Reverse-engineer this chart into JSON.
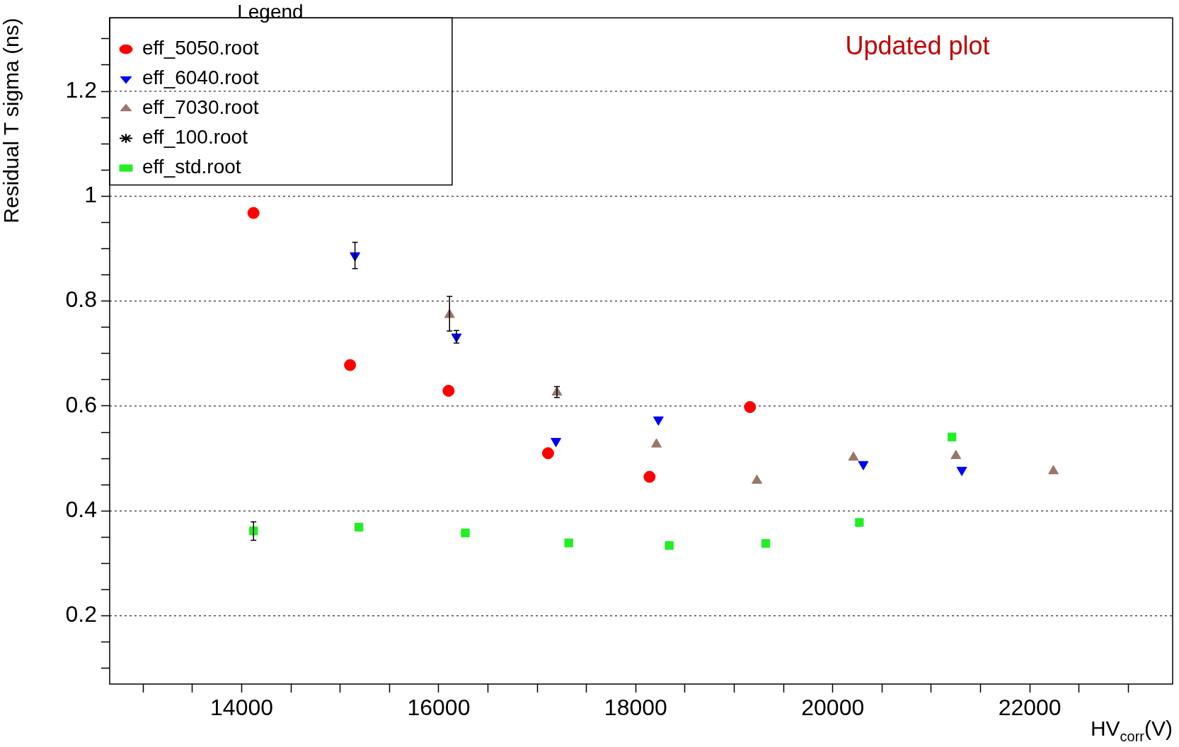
{
  "chart_data": {
    "type": "scatter",
    "xlabel": "HV$_{corr}$(V)",
    "ylabel": "Residual T sigma (ns)",
    "legend_title": "Legend",
    "legend": "top left",
    "grid": "y",
    "annotations": [
      "Updated plot"
    ],
    "xlim": [
      12660,
      23450
    ],
    "ylim": [
      0.07,
      1.34
    ],
    "xticks": [
      {
        "value": 13000,
        "label": null
      },
      {
        "value": 13500,
        "label": null
      },
      14000,
      {
        "value": 14500,
        "label": null
      },
      {
        "value": 15000,
        "label": null
      },
      {
        "value": 15500,
        "label": null
      },
      16000,
      {
        "value": 16500,
        "label": null
      },
      {
        "value": 17000,
        "label": null
      },
      {
        "value": 17500,
        "label": null
      },
      18000,
      {
        "value": 18500,
        "label": null
      },
      {
        "value": 19000,
        "label": null
      },
      {
        "value": 19500,
        "label": null
      },
      20000,
      {
        "value": 20500,
        "label": null
      },
      {
        "value": 21000,
        "label": null
      },
      {
        "value": 21500,
        "label": null
      },
      22000,
      {
        "value": 22500,
        "label": null
      },
      {
        "value": 23000,
        "label": null
      }
    ],
    "yticks": [
      {
        "value": 0.1,
        "label": null
      },
      {
        "value": 0.15,
        "label": null
      },
      0.2,
      {
        "value": 0.25,
        "label": null
      },
      {
        "value": 0.3,
        "label": null
      },
      {
        "value": 0.35,
        "label": null
      },
      0.4,
      {
        "value": 0.45,
        "label": null
      },
      {
        "value": 0.5,
        "label": null
      },
      {
        "value": 0.55,
        "label": null
      },
      0.6,
      {
        "value": 0.65,
        "label": null
      },
      {
        "value": 0.7,
        "label": null
      },
      {
        "value": 0.75,
        "label": null
      },
      0.8,
      {
        "value": 0.85,
        "label": null
      },
      {
        "value": 0.9,
        "label": null
      },
      {
        "value": 0.95,
        "label": null
      },
      1,
      {
        "value": 1.05,
        "label": null
      },
      {
        "value": 1.1,
        "label": null
      },
      {
        "value": 1.15,
        "label": null
      },
      1.2,
      {
        "value": 1.25,
        "label": null
      },
      {
        "value": 1.3,
        "label": null
      }
    ],
    "series": [
      {
        "name": "eff_5050.root",
        "color": "#ff0000",
        "marker": "circle",
        "x": [
          14120,
          15100,
          16100,
          17110,
          18140,
          19160
        ],
        "values": [
          0.968,
          0.678,
          0.629,
          0.51,
          0.465,
          0.598
        ]
      },
      {
        "name": "eff_6040.root",
        "color": "#0000ff",
        "marker": "triangle-down",
        "x": [
          15150,
          16180,
          17190,
          18230,
          20310,
          21310
        ],
        "values": [
          0.887,
          0.732,
          0.533,
          0.574,
          0.489,
          0.478
        ],
        "errors": [
          0.025,
          0.012,
          null,
          null,
          null,
          null
        ]
      },
      {
        "name": "eff_7030.root",
        "color": "#98776a",
        "marker": "triangle",
        "x": [
          16110,
          17200,
          18210,
          19230,
          20210,
          21250,
          22240
        ],
        "values": [
          0.774,
          0.626,
          0.527,
          0.458,
          0.502,
          0.505,
          0.476
        ],
        "errors": [
          [
            0.743,
            0.809
          ],
          [
            0.616,
            0.637
          ],
          null,
          null,
          null,
          null,
          null
        ]
      },
      {
        "name": "eff_100.root",
        "color": "#000000",
        "marker": "star"
      },
      {
        "name": "eff_std.root",
        "color": "#22ee22",
        "marker": "square",
        "x": [
          14120,
          15190,
          16270,
          17320,
          18340,
          19320,
          20270,
          21210
        ],
        "values": [
          0.362,
          0.369,
          0.358,
          0.339,
          0.334,
          0.338,
          0.378,
          0.541
        ],
        "errors": [
          [
            0.344,
            0.379
          ],
          null,
          null,
          null,
          null,
          null,
          null,
          null
        ]
      }
    ]
  }
}
